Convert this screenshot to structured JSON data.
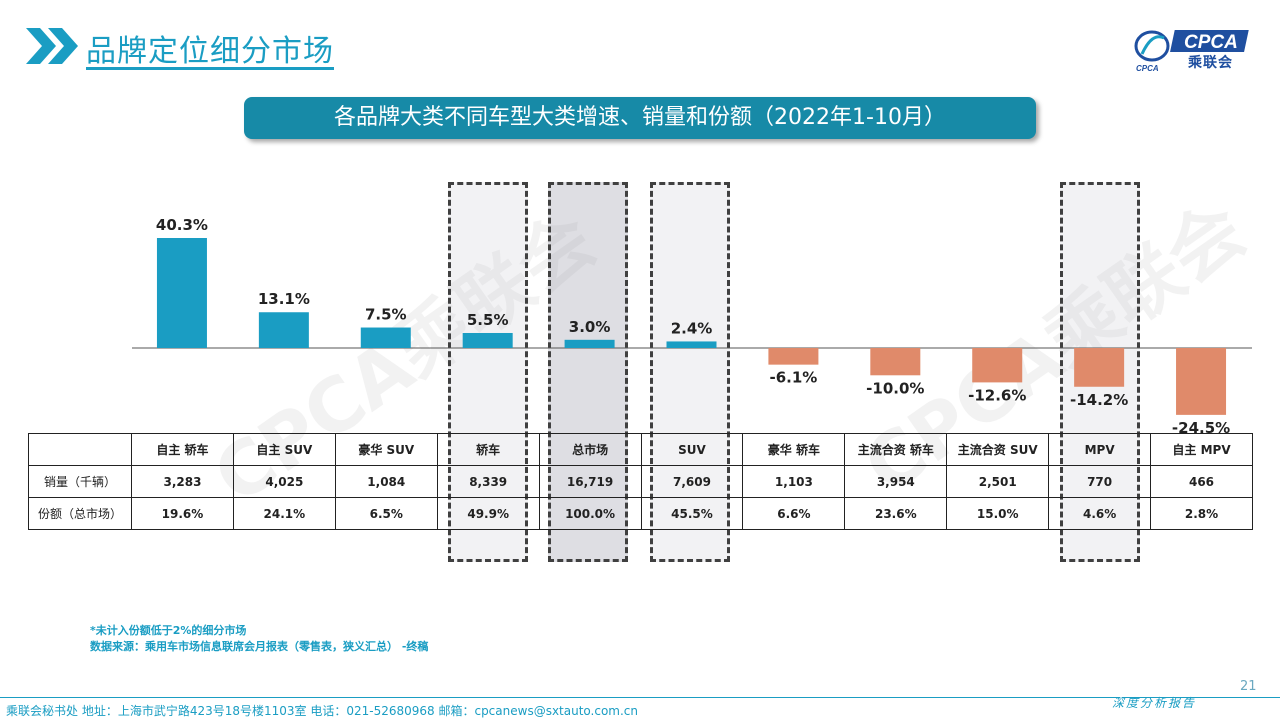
{
  "header": {
    "title": "品牌定位细分市场",
    "logo_text": "CPCA",
    "logo_sub": "CPCA",
    "logo_cn": "乘联会"
  },
  "chart_title": "各品牌大类不同车型大类增速、销量和份额（2022年1-10月）",
  "watermark": "CPCA乘联会",
  "colors": {
    "positive": "#1a9dc3",
    "negative": "#e08a6a",
    "accent": "#178aa7"
  },
  "chart_data": {
    "type": "bar",
    "categories": [
      "自主 轿车",
      "自主 SUV",
      "豪华 SUV",
      "轿车",
      "总市场",
      "SUV",
      "豪华 轿车",
      "主流合资 轿车",
      "主流合资 SUV",
      "MPV",
      "自主 MPV"
    ],
    "values": [
      40.3,
      13.1,
      7.5,
      5.5,
      3.0,
      2.4,
      -6.1,
      -10.0,
      -12.6,
      -14.2,
      -24.5
    ],
    "value_labels": [
      "40.3%",
      "13.1%",
      "7.5%",
      "5.5%",
      "3.0%",
      "2.4%",
      "-6.1%",
      "-10.0%",
      "-12.6%",
      "-14.2%",
      "-24.5%"
    ],
    "highlighted": [
      "轿车",
      "总市场",
      "SUV",
      "MPV"
    ],
    "ylim": [
      -26,
      43
    ],
    "grid": false
  },
  "table": {
    "rows": [
      {
        "label": "销量（千辆）",
        "values": [
          "3,283",
          "4,025",
          "1,084",
          "8,339",
          "16,719",
          "7,609",
          "1,103",
          "3,954",
          "2,501",
          "770",
          "466"
        ]
      },
      {
        "label": "份额（总市场）",
        "values": [
          "19.6%",
          "24.1%",
          "6.5%",
          "49.9%",
          "100.0%",
          "45.5%",
          "6.6%",
          "23.6%",
          "15.0%",
          "4.6%",
          "2.8%"
        ]
      }
    ]
  },
  "footnotes": {
    "line1": "*未计入份额低于2%的细分市场",
    "line2": "数据来源：乘用车市场信息联席会月报表（零售表，狭义汇总） -终稿"
  },
  "page_number": "21",
  "footer": {
    "left": "乘联会秘书处   地址：上海市武宁路423号18号楼1103室  电话：021-52680968   邮箱：cpcanews@sxtauto.com.cn",
    "right": "深度分析报告"
  }
}
